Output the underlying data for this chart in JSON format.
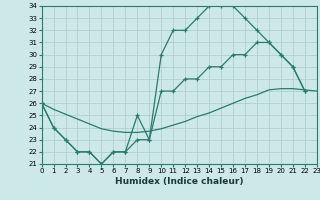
{
  "xlabel": "Humidex (Indice chaleur)",
  "bg_color": "#cde8e8",
  "line_color": "#2d7a6e",
  "grid_color": "#b0d0d0",
  "xmin": 0,
  "xmax": 23,
  "ymin": 21,
  "ymax": 34,
  "line1_x": [
    0,
    1,
    2,
    3,
    4,
    5,
    6,
    7,
    8,
    9,
    10,
    11,
    12,
    13,
    14,
    15,
    16,
    17,
    18,
    19,
    20,
    21,
    22
  ],
  "line1_y": [
    26,
    24,
    23,
    22,
    22,
    21,
    22,
    22,
    25,
    23,
    30,
    32,
    32,
    33,
    34,
    34,
    34,
    33,
    32,
    31,
    30,
    29,
    27
  ],
  "line2_x": [
    0,
    1,
    2,
    3,
    4,
    5,
    6,
    7,
    8,
    9,
    10,
    11,
    12,
    13,
    14,
    15,
    16,
    17,
    18,
    19,
    20,
    21,
    22
  ],
  "line2_y": [
    26,
    24,
    23,
    22,
    22,
    21,
    22,
    22,
    23,
    23,
    27,
    27,
    28,
    28,
    29,
    29,
    30,
    30,
    31,
    31,
    30,
    29,
    27
  ],
  "line3_x": [
    0,
    1,
    2,
    3,
    4,
    5,
    6,
    7,
    8,
    9,
    10,
    11,
    12,
    13,
    14,
    15,
    16,
    17,
    18,
    19,
    20,
    21,
    22,
    23
  ],
  "line3_y": [
    26,
    25.5,
    25.1,
    24.7,
    24.3,
    23.9,
    23.7,
    23.6,
    23.6,
    23.7,
    23.9,
    24.2,
    24.5,
    24.9,
    25.2,
    25.6,
    26.0,
    26.4,
    26.7,
    27.1,
    27.2,
    27.2,
    27.1,
    27.0
  ],
  "xtick_labels": [
    "0",
    "1",
    "2",
    "3",
    "4",
    "5",
    "6",
    "7",
    "8",
    "9",
    "10",
    "11",
    "12",
    "13",
    "14",
    "15",
    "16",
    "17",
    "18",
    "19",
    "20",
    "21",
    "22",
    "23"
  ],
  "ytick_labels": [
    "21",
    "22",
    "23",
    "24",
    "25",
    "26",
    "27",
    "28",
    "29",
    "30",
    "31",
    "32",
    "33",
    "34"
  ],
  "xlabel_fontsize": 6.5,
  "tick_fontsize": 5.0
}
